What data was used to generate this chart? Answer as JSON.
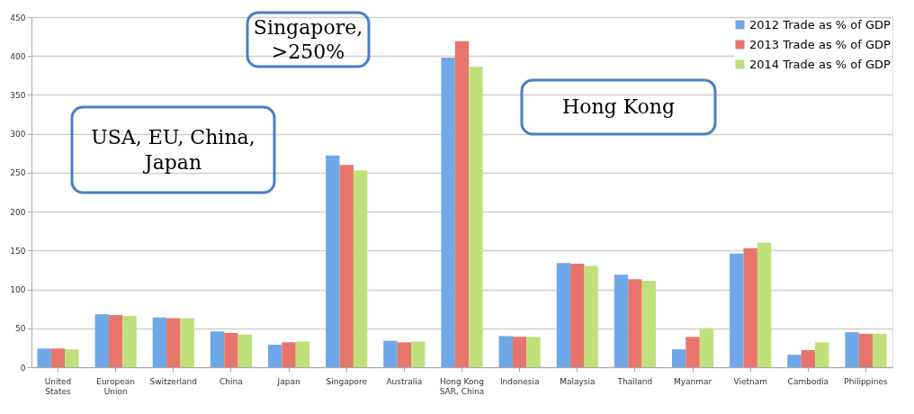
{
  "chart_data": {
    "type": "bar",
    "categories": [
      "United States",
      "European Union",
      "Switzerland",
      "China",
      "Japan",
      "Singapore",
      "Australia",
      "Hong Kong SAR, China",
      "Indonesia",
      "Malaysia",
      "Thailand",
      "Myanmar",
      "Vietnam",
      "Cambodia",
      "Philippines"
    ],
    "series": [
      {
        "name": "2012 Trade as % of GDP",
        "color": "#6fa8e8",
        "values": [
          24,
          68,
          64,
          46,
          29,
          272,
          34,
          398,
          40,
          134,
          119,
          23,
          146,
          16,
          45
        ]
      },
      {
        "name": "2013 Trade as % of GDP",
        "color": "#e8756c",
        "values": [
          24,
          67,
          63,
          44,
          32,
          260,
          32,
          419,
          39,
          133,
          113,
          39,
          153,
          22,
          43
        ]
      },
      {
        "name": "2014 Trade as % of GDP",
        "color": "#bfe07a",
        "values": [
          23,
          66,
          63,
          42,
          33,
          253,
          33,
          386,
          39,
          130,
          111,
          50,
          160,
          32,
          43
        ]
      }
    ],
    "ylim": [
      0,
      450
    ],
    "yticks": [
      0,
      50,
      100,
      150,
      200,
      250,
      300,
      350,
      400,
      450
    ],
    "grid": "y",
    "legend": "top right",
    "annotations": [
      "USA, EU, China, Japan",
      "Singapore, >250%",
      "Hong Kong"
    ]
  }
}
